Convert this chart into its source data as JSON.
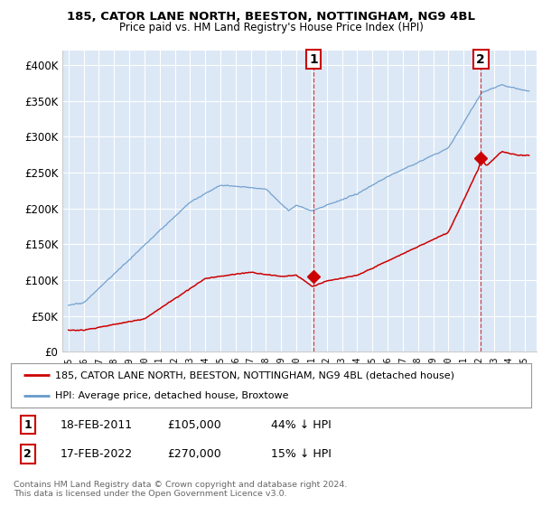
{
  "title1": "185, CATOR LANE NORTH, BEESTON, NOTTINGHAM, NG9 4BL",
  "title2": "Price paid vs. HM Land Registry's House Price Index (HPI)",
  "ylim": [
    0,
    420000
  ],
  "yticks": [
    0,
    50000,
    100000,
    150000,
    200000,
    250000,
    300000,
    350000,
    400000
  ],
  "ytick_labels": [
    "£0",
    "£50K",
    "£100K",
    "£150K",
    "£200K",
    "£250K",
    "£300K",
    "£350K",
    "£400K"
  ],
  "plot_bg": "#dce8f5",
  "legend_entry1": "185, CATOR LANE NORTH, BEESTON, NOTTINGHAM, NG9 4BL (detached house)",
  "legend_entry2": "HPI: Average price, detached house, Broxtowe",
  "annotation1": {
    "label": "1",
    "date": "18-FEB-2011",
    "price": "£105,000",
    "pct": "44% ↓ HPI"
  },
  "annotation2": {
    "label": "2",
    "date": "17-FEB-2022",
    "price": "£270,000",
    "pct": "15% ↓ HPI"
  },
  "footer": "Contains HM Land Registry data © Crown copyright and database right 2024.\nThis data is licensed under the Open Government Licence v3.0.",
  "red_color": "#cc0000",
  "blue_color": "#6699cc",
  "box_color": "#cc0000",
  "sale1_year": 2011.125,
  "sale1_price": 105000,
  "sale2_year": 2022.125,
  "sale2_price": 270000
}
